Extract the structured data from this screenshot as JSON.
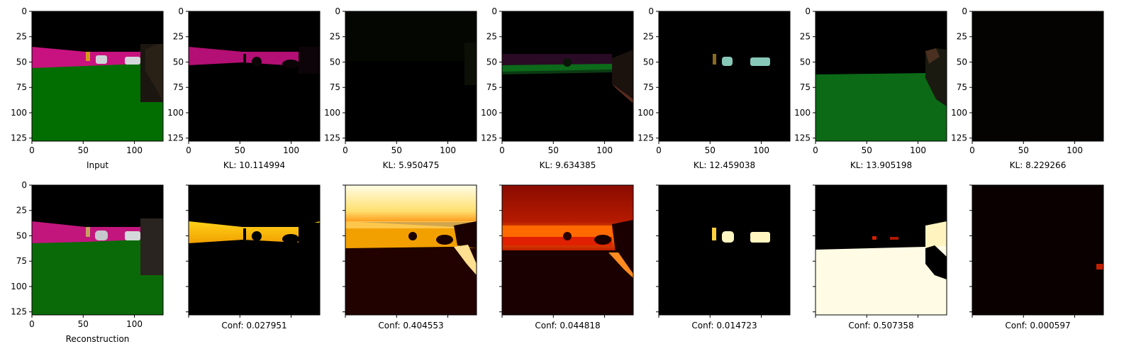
{
  "figure": {
    "axis_ticks": [
      "0",
      "25",
      "50",
      "75",
      "100",
      "125"
    ],
    "x_ticks": [
      "0",
      "50",
      "100"
    ],
    "top_row": [
      {
        "caption": "Input"
      },
      {
        "caption": "KL: 10.114994"
      },
      {
        "caption": "KL: 5.950475"
      },
      {
        "caption": "KL: 9.634385"
      },
      {
        "caption": "KL: 12.459038"
      },
      {
        "caption": "KL: 13.905198"
      },
      {
        "caption": "KL: 8.229266"
      }
    ],
    "bottom_row": [
      {
        "caption": "Reconstruction"
      },
      {
        "caption": "Conf: 0.027951"
      },
      {
        "caption": "Conf: 0.404553"
      },
      {
        "caption": "Conf: 0.044818"
      },
      {
        "caption": "Conf: 0.014723"
      },
      {
        "caption": "Conf: 0.507358"
      },
      {
        "caption": "Conf: 0.000597"
      }
    ]
  }
}
